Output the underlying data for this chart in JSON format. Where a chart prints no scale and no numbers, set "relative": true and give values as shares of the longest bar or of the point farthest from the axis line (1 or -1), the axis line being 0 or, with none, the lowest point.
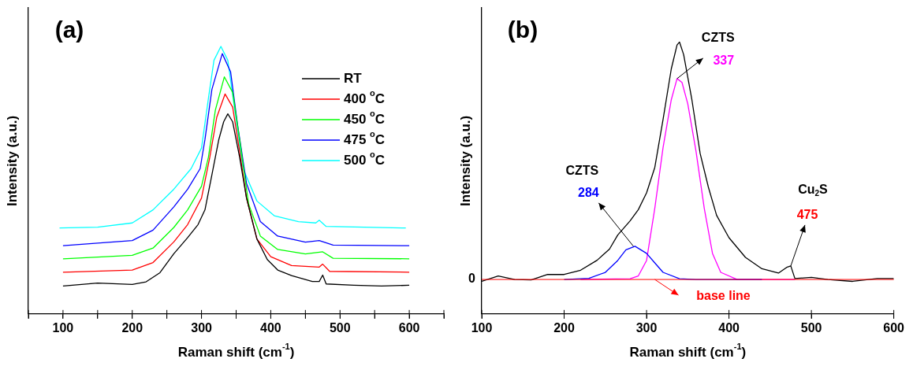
{
  "chart_data": [
    {
      "type": "line",
      "title": "(a)",
      "xlabel": "Raman shift (cm$^{-1}$)",
      "ylabel": "Intensity (a.u.)",
      "relative": true,
      "tick_labels": "x",
      "xlim": [
        50,
        650
      ],
      "xticks": [
        {
          "value": 50,
          "label": null
        },
        100,
        {
          "value": 150,
          "label": null
        },
        200,
        {
          "value": 250,
          "label": null
        },
        300,
        {
          "value": 350,
          "label": null
        },
        400,
        {
          "value": 450,
          "label": null
        },
        500,
        {
          "value": 550,
          "label": null
        },
        600,
        {
          "value": 650,
          "label": null
        }
      ],
      "grid": false,
      "legend": "top right",
      "marker": "none",
      "line_style": "solid",
      "series": [
        {
          "name": "RT",
          "color": "#000000",
          "x": [
            100,
            150,
            200,
            220,
            240,
            260,
            280,
            295,
            305,
            315,
            325,
            332,
            338,
            345,
            355,
            365,
            380,
            395,
            410,
            430,
            460,
            470,
            475,
            480,
            520,
            560,
            600
          ],
          "values": [
            0.104,
            0.115,
            0.11,
            0.12,
            0.154,
            0.225,
            0.285,
            0.334,
            0.389,
            0.52,
            0.652,
            0.718,
            0.748,
            0.718,
            0.586,
            0.433,
            0.28,
            0.203,
            0.164,
            0.143,
            0.121,
            0.121,
            0.145,
            0.112,
            0.107,
            0.104,
            0.107
          ]
        },
        {
          "name": "400 $^{o}$C",
          "color": "#ff0000",
          "x": [
            100,
            200,
            230,
            260,
            280,
            300,
            312,
            322,
            334,
            345,
            355,
            365,
            380,
            400,
            430,
            470,
            475,
            485,
            600
          ],
          "values": [
            0.156,
            0.164,
            0.192,
            0.269,
            0.334,
            0.433,
            0.586,
            0.735,
            0.822,
            0.773,
            0.608,
            0.433,
            0.28,
            0.214,
            0.181,
            0.175,
            0.186,
            0.159,
            0.156
          ]
        },
        {
          "name": "450 $^{o}$C",
          "color": "#00ff00",
          "x": [
            100,
            200,
            230,
            260,
            280,
            300,
            310,
            320,
            333,
            345,
            355,
            368,
            385,
            410,
            450,
            475,
            490,
            600
          ],
          "values": [
            0.206,
            0.219,
            0.246,
            0.323,
            0.389,
            0.477,
            0.586,
            0.762,
            0.886,
            0.828,
            0.652,
            0.411,
            0.291,
            0.241,
            0.224,
            0.232,
            0.208,
            0.206
          ]
        },
        {
          "name": "475 $^{o}$C",
          "color": "#0000ff",
          "x": [
            100,
            200,
            230,
            260,
            280,
            298,
            305,
            315,
            330,
            342,
            352,
            365,
            385,
            410,
            450,
            470,
            490,
            600
          ],
          "values": [
            0.255,
            0.274,
            0.313,
            0.4,
            0.466,
            0.543,
            0.652,
            0.839,
            0.973,
            0.905,
            0.708,
            0.488,
            0.345,
            0.291,
            0.268,
            0.274,
            0.257,
            0.255
          ]
        },
        {
          "name": "500 $^{o}$C",
          "color": "#00ffff",
          "x": [
            95,
            150,
            200,
            230,
            260,
            285,
            300,
            310,
            318,
            328,
            338,
            348,
            360,
            380,
            405,
            440,
            465,
            470,
            480,
            595
          ],
          "values": [
            0.321,
            0.324,
            0.34,
            0.389,
            0.466,
            0.543,
            0.62,
            0.806,
            0.948,
            1,
            0.948,
            0.762,
            0.543,
            0.422,
            0.367,
            0.345,
            0.34,
            0.35,
            0.327,
            0.321
          ]
        }
      ]
    },
    {
      "type": "line",
      "title": "(b)",
      "xlabel": "Raman shift (cm$^{-1}$)",
      "ylabel": "Intensity (a.u.)",
      "relative": true,
      "xlim": [
        100,
        600
      ],
      "xticks": [
        100,
        200,
        300,
        400,
        500,
        600
      ],
      "grid": false,
      "marker": "none",
      "line_style": "solid",
      "ref_lines": [
        {
          "axis": "y",
          "value": 0,
          "label": "base line",
          "color": "#ff0000"
        }
      ],
      "annotations": [
        "CZTS",
        {
          "text": "337",
          "x": 337,
          "y": 0.846
        },
        "CZTS",
        {
          "text": "284",
          "x": 284,
          "y": 0.14
        },
        "Cu$_{2}$S",
        {
          "text": "475",
          "x": 475,
          "y": 0.057
        },
        {
          "text": "0",
          "x": 100,
          "y": 0
        }
      ],
      "series": [
        {
          "color": "#000000",
          "x": [
            100,
            120,
            140,
            160,
            180,
            200,
            220,
            240,
            255,
            265,
            280,
            290,
            300,
            310,
            320,
            330,
            337,
            340,
            345,
            355,
            365,
            375,
            385,
            400,
            420,
            440,
            460,
            470,
            475,
            480,
            500,
            520,
            550,
            580,
            600
          ],
          "values": [
            -0.008,
            0.015,
            0,
            -0.002,
            0.021,
            0.021,
            0.039,
            0.081,
            0.128,
            0.187,
            0.247,
            0.294,
            0.365,
            0.472,
            0.674,
            0.887,
            0.988,
            1,
            0.947,
            0.757,
            0.531,
            0.389,
            0.27,
            0.176,
            0.093,
            0.045,
            0.027,
            0.051,
            0.057,
            0.004,
            0.009,
            0,
            -0.008,
            0.004,
            0.004
          ]
        },
        {
          "color": "#0000ff",
          "x": [
            200,
            230,
            250,
            265,
            275,
            286,
            300,
            310,
            320,
            340,
            360,
            440
          ],
          "values": [
            0,
            0.005,
            0.03,
            0.08,
            0.125,
            0.14,
            0.11,
            0.07,
            0.03,
            0.003,
            0,
            0
          ]
        },
        {
          "color": "#ff00ff",
          "x": [
            220,
            280,
            290,
            300,
            310,
            320,
            330,
            337,
            343,
            350,
            360,
            370,
            380,
            390,
            410,
            480
          ],
          "values": [
            0,
            0.003,
            0.015,
            0.08,
            0.3,
            0.555,
            0.757,
            0.846,
            0.83,
            0.74,
            0.54,
            0.3,
            0.11,
            0.03,
            0,
            0
          ]
        }
      ]
    }
  ]
}
